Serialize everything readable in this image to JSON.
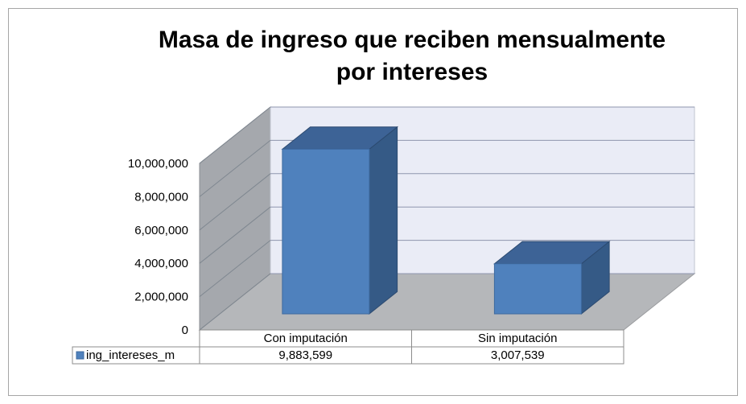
{
  "chart_data": {
    "type": "bar3d",
    "title": "Masa de ingreso que reciben mensualmente por intereses",
    "categories": [
      "Con imputación",
      "Sin imputación"
    ],
    "series": [
      {
        "name": "ing_intereses_m",
        "color": "#4f81bd",
        "values": [
          9883599,
          3007539
        ],
        "value_labels": [
          "9,883,599",
          "3,007,539"
        ]
      }
    ],
    "ylim": [
      0,
      10000000
    ],
    "yticks": [
      {
        "value": 0,
        "label": "0"
      },
      {
        "value": 2000000,
        "label": "2,000,000"
      },
      {
        "value": 4000000,
        "label": "4,000,000"
      },
      {
        "value": 6000000,
        "label": "6,000,000"
      },
      {
        "value": 8000000,
        "label": "8,000,000"
      },
      {
        "value": 10000000,
        "label": "10,000,000"
      }
    ],
    "grid": true
  }
}
